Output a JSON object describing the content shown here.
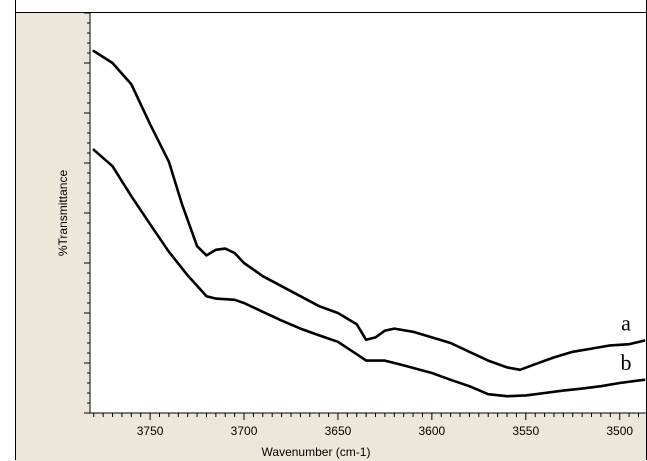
{
  "chart_data": {
    "type": "line",
    "title": "",
    "xlabel": "Wavenumber (cm-1)",
    "ylabel": "%Transmittance",
    "x_reversed": true,
    "xlim": [
      3782,
      3486
    ],
    "ylim": [
      0,
      100
    ],
    "y_tick_labels_shown": false,
    "x_ticks": [
      {
        "value": 3750,
        "label": "3750"
      },
      {
        "value": 3700,
        "label": "3700"
      },
      {
        "value": 3650,
        "label": "3650"
      },
      {
        "value": 3600,
        "label": "3600"
      },
      {
        "value": 3550,
        "label": "3550"
      },
      {
        "value": 3500,
        "label": "3500"
      }
    ],
    "series": [
      {
        "name": "a",
        "color": "#000000",
        "points": [
          [
            3780,
            90.5
          ],
          [
            3770,
            87.5
          ],
          [
            3760,
            82.2
          ],
          [
            3750,
            72.2
          ],
          [
            3740,
            62.8
          ],
          [
            3733,
            52.2
          ],
          [
            3725,
            41.7
          ],
          [
            3720,
            39.4
          ],
          [
            3715,
            40.8
          ],
          [
            3710,
            41.1
          ],
          [
            3705,
            40.0
          ],
          [
            3700,
            37.5
          ],
          [
            3690,
            34.2
          ],
          [
            3680,
            31.7
          ],
          [
            3670,
            29.2
          ],
          [
            3660,
            26.7
          ],
          [
            3650,
            25.0
          ],
          [
            3640,
            22.2
          ],
          [
            3635,
            18.3
          ],
          [
            3630,
            18.9
          ],
          [
            3625,
            20.6
          ],
          [
            3620,
            21.1
          ],
          [
            3610,
            20.3
          ],
          [
            3600,
            18.9
          ],
          [
            3590,
            17.5
          ],
          [
            3580,
            15.3
          ],
          [
            3570,
            13.1
          ],
          [
            3560,
            11.4
          ],
          [
            3553,
            10.8
          ],
          [
            3545,
            12.2
          ],
          [
            3535,
            13.9
          ],
          [
            3525,
            15.3
          ],
          [
            3515,
            16.1
          ],
          [
            3505,
            16.9
          ],
          [
            3495,
            17.2
          ],
          [
            3487,
            18.1
          ]
        ]
      },
      {
        "name": "b",
        "color": "#000000",
        "points": [
          [
            3780,
            65.8
          ],
          [
            3770,
            61.7
          ],
          [
            3760,
            54.2
          ],
          [
            3750,
            47.2
          ],
          [
            3740,
            40.3
          ],
          [
            3730,
            34.4
          ],
          [
            3720,
            29.2
          ],
          [
            3715,
            28.6
          ],
          [
            3705,
            28.3
          ],
          [
            3700,
            27.5
          ],
          [
            3690,
            25.3
          ],
          [
            3680,
            23.1
          ],
          [
            3670,
            21.1
          ],
          [
            3660,
            19.4
          ],
          [
            3650,
            17.8
          ],
          [
            3640,
            14.7
          ],
          [
            3635,
            13.1
          ],
          [
            3625,
            13.1
          ],
          [
            3615,
            11.9
          ],
          [
            3600,
            10.0
          ],
          [
            3590,
            8.3
          ],
          [
            3580,
            6.7
          ],
          [
            3570,
            4.7
          ],
          [
            3560,
            4.2
          ],
          [
            3550,
            4.4
          ],
          [
            3540,
            5.0
          ],
          [
            3530,
            5.6
          ],
          [
            3520,
            6.1
          ],
          [
            3510,
            6.7
          ],
          [
            3500,
            7.5
          ],
          [
            3487,
            8.3
          ]
        ]
      }
    ],
    "legend": "inline labels at right end of each curve",
    "grid": false
  }
}
